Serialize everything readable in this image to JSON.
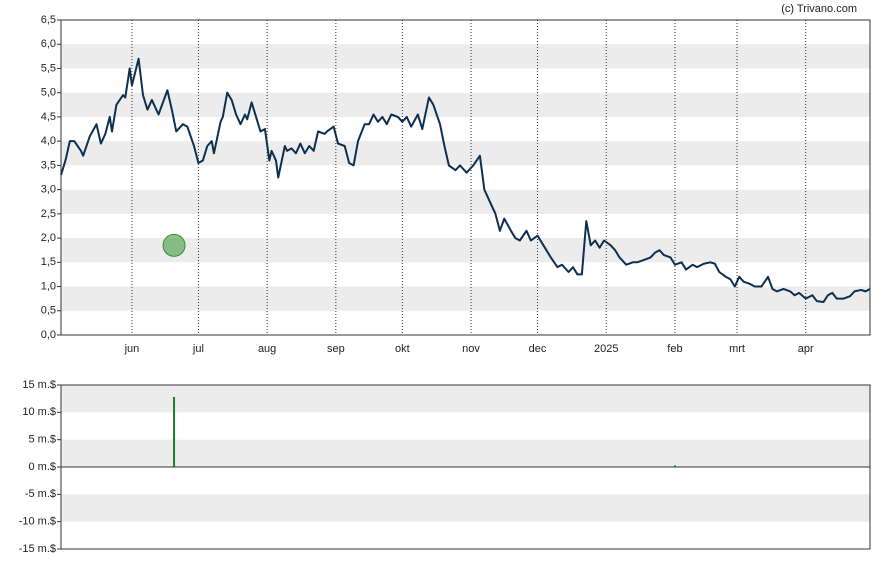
{
  "chart_data": [
    {
      "type": "line",
      "source": "(c) Trivano.com",
      "xlim": [
        0,
        365
      ],
      "xticks": [
        {
          "value": 32,
          "label": "jun"
        },
        {
          "value": 62,
          "label": "jul"
        },
        {
          "value": 93,
          "label": "aug"
        },
        {
          "value": 124,
          "label": "sep"
        },
        {
          "value": 154,
          "label": "okt"
        },
        {
          "value": 185,
          "label": "nov"
        },
        {
          "value": 215,
          "label": "dec"
        },
        {
          "value": 246,
          "label": "2025"
        },
        {
          "value": 277,
          "label": "feb"
        },
        {
          "value": 305,
          "label": "mrt"
        },
        {
          "value": 336,
          "label": "apr"
        }
      ],
      "ylim": [
        0,
        6.5
      ],
      "yticks": [
        {
          "value": 6.5,
          "label": "6,5"
        },
        {
          "value": 6.0,
          "label": "6,0"
        },
        {
          "value": 5.5,
          "label": "5,5"
        },
        {
          "value": 5.0,
          "label": "5,0"
        },
        {
          "value": 4.5,
          "label": "4,5"
        },
        {
          "value": 4.0,
          "label": "4,0"
        },
        {
          "value": 3.5,
          "label": "3,5"
        },
        {
          "value": 3.0,
          "label": "3,0"
        },
        {
          "value": 2.5,
          "label": "2,5"
        },
        {
          "value": 2.0,
          "label": "2,0"
        },
        {
          "value": 1.5,
          "label": "1,5"
        },
        {
          "value": 1.0,
          "label": "1,0"
        },
        {
          "value": 0.5,
          "label": "0,5"
        },
        {
          "value": 0,
          "label": "0,0"
        }
      ],
      "color": "#0d3050",
      "x": [
        0,
        2,
        4,
        6,
        9,
        10,
        13,
        16,
        18,
        20,
        22,
        23,
        25,
        28,
        29,
        31,
        32,
        35,
        37,
        39,
        41,
        44,
        46,
        48,
        50,
        52,
        55,
        57,
        60,
        62,
        64,
        66,
        68,
        69,
        72,
        73,
        75,
        77,
        79,
        81,
        83,
        84,
        86,
        88,
        90,
        92,
        94,
        95,
        97,
        98,
        101,
        102,
        104,
        106,
        108,
        110,
        112,
        114,
        116,
        119,
        120,
        123,
        125,
        128,
        130,
        132,
        134,
        137,
        139,
        141,
        143,
        145,
        147,
        149,
        152,
        154,
        156,
        158,
        161,
        163,
        166,
        168,
        171,
        173,
        175,
        178,
        180,
        183,
        186,
        189,
        191,
        193,
        196,
        198,
        200,
        203,
        205,
        207,
        210,
        212,
        215,
        217,
        219,
        221,
        224,
        226,
        229,
        231,
        233,
        235,
        237,
        239,
        241,
        243,
        245,
        248,
        250,
        252,
        255,
        258,
        260,
        263,
        266,
        268,
        270,
        272,
        275,
        277,
        280,
        282,
        285,
        287,
        290,
        293,
        295,
        297,
        300,
        302,
        304,
        306,
        308,
        311,
        313,
        316,
        319,
        321,
        323,
        326,
        329,
        331,
        333,
        336,
        339,
        341,
        344,
        346,
        348,
        350,
        353,
        356,
        358,
        361,
        363,
        365
      ],
      "values": [
        3.3,
        3.6,
        4.0,
        4.0,
        3.8,
        3.7,
        4.1,
        4.35,
        3.95,
        4.15,
        4.5,
        4.2,
        4.75,
        4.95,
        4.9,
        5.5,
        5.15,
        5.7,
        4.95,
        4.65,
        4.85,
        4.55,
        4.8,
        5.05,
        4.65,
        4.2,
        4.35,
        4.3,
        3.9,
        3.55,
        3.6,
        3.9,
        4.0,
        3.75,
        4.4,
        4.5,
        5.0,
        4.85,
        4.55,
        4.35,
        4.55,
        4.45,
        4.8,
        4.5,
        4.2,
        4.25,
        3.6,
        3.8,
        3.6,
        3.25,
        3.9,
        3.8,
        3.85,
        3.75,
        3.95,
        3.75,
        3.9,
        3.8,
        4.2,
        4.15,
        4.2,
        4.3,
        3.95,
        3.9,
        3.55,
        3.5,
        4.0,
        4.35,
        4.35,
        4.55,
        4.4,
        4.5,
        4.35,
        4.55,
        4.5,
        4.4,
        4.5,
        4.3,
        4.55,
        4.25,
        4.9,
        4.75,
        4.35,
        3.9,
        3.5,
        3.4,
        3.5,
        3.35,
        3.5,
        3.7,
        3.0,
        2.8,
        2.5,
        2.15,
        2.4,
        2.15,
        2.0,
        1.95,
        2.15,
        1.95,
        2.05,
        1.9,
        1.75,
        1.6,
        1.4,
        1.45,
        1.3,
        1.4,
        1.25,
        1.25,
        2.35,
        1.85,
        1.95,
        1.8,
        1.95,
        1.85,
        1.75,
        1.6,
        1.45,
        1.5,
        1.5,
        1.55,
        1.6,
        1.7,
        1.75,
        1.65,
        1.6,
        1.45,
        1.5,
        1.35,
        1.45,
        1.4,
        1.47,
        1.5,
        1.47,
        1.3,
        1.2,
        1.15,
        1.0,
        1.2,
        1.1,
        1.05,
        1.0,
        1.0,
        1.2,
        0.95,
        0.9,
        0.95,
        0.9,
        0.82,
        0.87,
        0.75,
        0.82,
        0.7,
        0.68,
        0.82,
        0.87,
        0.75,
        0.75,
        0.8,
        0.9,
        0.93,
        0.9,
        0.95
      ],
      "markers": {
        "color": "#5aaa5a",
        "x": [
          51
        ],
        "values": [
          1.85
        ]
      }
    },
    {
      "type": "bar",
      "xlim": [
        0,
        365
      ],
      "ylim": [
        -15,
        15
      ],
      "yticks": [
        {
          "value": 15,
          "label": "15 m.$"
        },
        {
          "value": 10,
          "label": "10 m.$"
        },
        {
          "value": 5,
          "label": "5 m.$"
        },
        {
          "value": 0,
          "label": "0 m.$"
        },
        {
          "value": -5,
          "label": "-5 m.$"
        },
        {
          "value": -10,
          "label": "-10 m.$"
        },
        {
          "value": -15,
          "label": "-15 m.$"
        }
      ],
      "color": "#1e7a2e",
      "x": [
        51,
        277
      ],
      "values": [
        12.8,
        0.3
      ]
    }
  ]
}
